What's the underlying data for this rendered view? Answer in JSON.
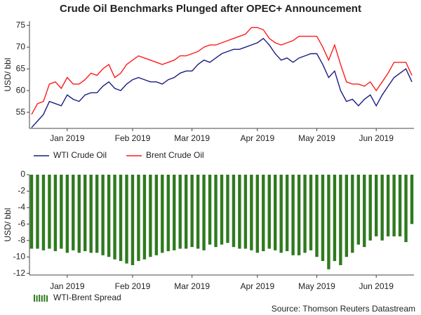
{
  "chart_data": [
    {
      "type": "line",
      "title": "Crude Oil Benchmarks Plunged after OPEC+ Announcement",
      "ylabel": "USD/ bbl",
      "categories": [
        null,
        null,
        null,
        null,
        null,
        null,
        "Jan 2019",
        null,
        null,
        null,
        null,
        null,
        null,
        null,
        null,
        null,
        null,
        "Feb 2019",
        null,
        null,
        null,
        null,
        null,
        null,
        null,
        null,
        null,
        "Mar 2019",
        null,
        null,
        null,
        null,
        null,
        null,
        null,
        null,
        null,
        null,
        "Apr 2019",
        null,
        null,
        null,
        null,
        null,
        null,
        null,
        null,
        null,
        "May 2019",
        null,
        null,
        null,
        null,
        null,
        null,
        null,
        null,
        null,
        "Jun 2019",
        null,
        null,
        null,
        null,
        null,
        null
      ],
      "series": [
        {
          "name": "WTI Crude Oil",
          "color": "#1b1b80",
          "values": [
            51.5,
            53,
            54.5,
            57.5,
            57,
            56.5,
            59,
            58,
            57.5,
            59,
            59.5,
            59.5,
            61,
            62,
            60.5,
            60,
            61.5,
            62.5,
            63,
            62.5,
            62,
            62,
            61.5,
            62.5,
            63,
            64,
            64.5,
            64.5,
            66,
            67,
            66.5,
            67.5,
            68.5,
            69,
            69.5,
            69.5,
            70,
            70.5,
            71,
            72,
            70.5,
            68.5,
            67,
            67.5,
            66.5,
            67.5,
            68,
            68.5,
            68.5,
            66,
            63,
            64.5,
            60,
            57.5,
            58,
            56.5,
            58,
            59,
            56.5,
            59,
            61,
            63,
            64,
            65,
            62
          ]
        },
        {
          "name": "Brent Crude Oil",
          "color": "#ff1a1a",
          "values": [
            54.5,
            57,
            57.5,
            61.5,
            62,
            60.5,
            63,
            61.5,
            61.5,
            62.5,
            64,
            63.5,
            65,
            66,
            63,
            64,
            66,
            67,
            68,
            67.5,
            67,
            66.5,
            66,
            66.5,
            67,
            68,
            68,
            68.5,
            69,
            70,
            70.5,
            70.5,
            71,
            71.5,
            72,
            72.5,
            73,
            74.5,
            74.5,
            74,
            72,
            71,
            70.5,
            71,
            71.5,
            72.5,
            72.5,
            72.5,
            72.5,
            70,
            67,
            70.5,
            66,
            62,
            61.5,
            61.5,
            61,
            62,
            60,
            62,
            64,
            66.5,
            66.5,
            66.5,
            63.5
          ]
        }
      ],
      "ylim": [
        51.3,
        76
      ],
      "yticks": [
        55,
        60,
        65,
        70,
        75
      ]
    },
    {
      "type": "bar",
      "ylabel": "USD/ bbl",
      "categories": [
        null,
        null,
        null,
        null,
        null,
        null,
        "Jan 2019",
        null,
        null,
        null,
        null,
        null,
        null,
        null,
        null,
        null,
        null,
        "Feb 2019",
        null,
        null,
        null,
        null,
        null,
        null,
        null,
        null,
        null,
        "Mar 2019",
        null,
        null,
        null,
        null,
        null,
        null,
        null,
        null,
        null,
        null,
        "Apr 2019",
        null,
        null,
        null,
        null,
        null,
        null,
        null,
        null,
        null,
        "May 2019",
        null,
        null,
        null,
        null,
        null,
        null,
        null,
        null,
        null,
        "Jun 2019",
        null,
        null,
        null,
        null,
        null,
        null
      ],
      "series": [
        {
          "name": "WTI-Brent Spread",
          "color": "#2f7a1f",
          "values": [
            -9,
            -9,
            -9.2,
            -9,
            -9.3,
            -9,
            -9.5,
            -9.2,
            -9.5,
            -9.3,
            -9.5,
            -9.5,
            -9.8,
            -10,
            -10.3,
            -10.5,
            -10.8,
            -11,
            -10.5,
            -10.3,
            -10,
            -9.8,
            -9.5,
            -9.3,
            -9.2,
            -9,
            -9,
            -8.8,
            -9,
            -9.2,
            -8.5,
            -8.8,
            -8.5,
            -8.3,
            -8.8,
            -9,
            -9,
            -9.2,
            -9.5,
            -9.3,
            -9,
            -9.2,
            -9.5,
            -9.3,
            -9.8,
            -9.8,
            -9.5,
            -9.2,
            -10,
            -10.5,
            -11.5,
            -10.5,
            -11,
            -10,
            -9.5,
            -8.5,
            -8.8,
            -8,
            -7.5,
            -8,
            -7.5,
            -7.5,
            -7.5,
            -8.2,
            -6
          ]
        }
      ],
      "ylim": [
        -12.2,
        0
      ],
      "yticks": [
        0,
        -2,
        -4,
        -6,
        -8,
        -10,
        -12
      ]
    }
  ],
  "source": "Source: Thomson Reuters Datastream"
}
